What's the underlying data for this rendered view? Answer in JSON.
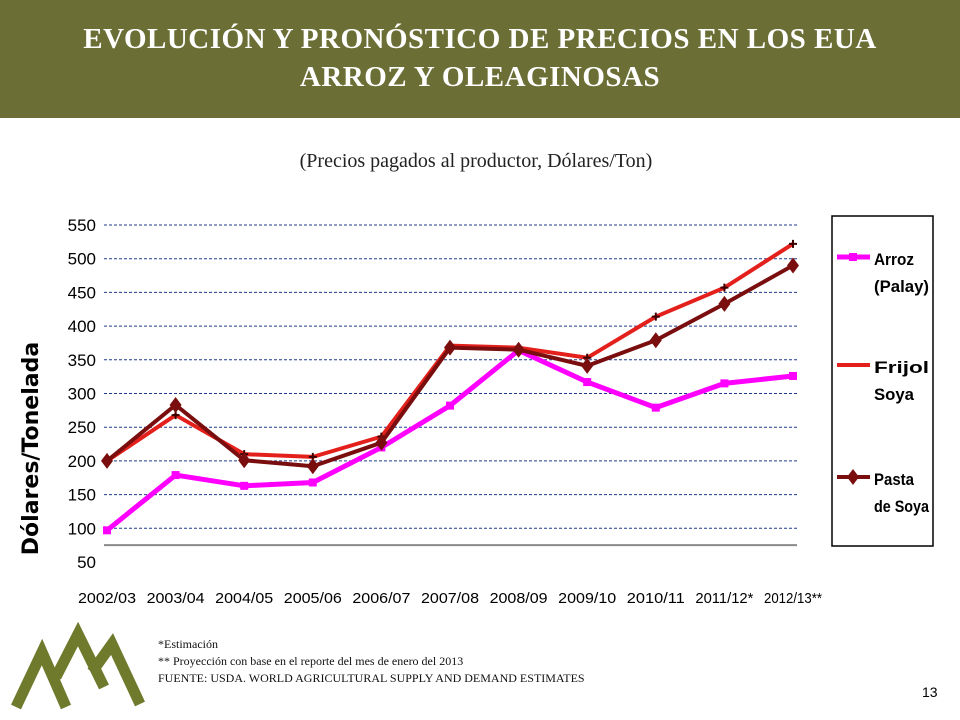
{
  "header": {
    "title_line1": "EVOLUCIÓN Y PRONÓSTICO DE PRECIOS EN LOS EUA",
    "title_line2": "ARROZ Y OLEAGINOSAS",
    "subtitle": "(Precios pagados al productor, Dólares/Ton)"
  },
  "chart_data": {
    "type": "line",
    "ylabel": "Dólares/Tonelada",
    "xlabel": "",
    "ylim": [
      50,
      550
    ],
    "yticks": [
      50,
      100,
      150,
      200,
      250,
      300,
      350,
      400,
      450,
      500,
      550
    ],
    "grid": "horizontal dashed",
    "legend_position": "right",
    "categories": [
      "2002/03",
      "2003/04",
      "2004/05",
      "2005/06",
      "2006/07",
      "2007/08",
      "2008/09",
      "2009/10",
      "2010/11",
      "2011/12*",
      "2012/13**"
    ],
    "series": [
      {
        "name": "Arroz (Palay)",
        "name_lines": [
          "Arroz",
          "(Palay)"
        ],
        "color": "#ff00ff",
        "marker": "square",
        "values": [
          97,
          179,
          163,
          168,
          220,
          282,
          364,
          317,
          279,
          315,
          326
        ]
      },
      {
        "name": "Frijol Soya",
        "name_lines": [
          "Frijol",
          "Soya"
        ],
        "color": "#e3201b",
        "marker": "star",
        "values": [
          200,
          268,
          210,
          206,
          236,
          371,
          368,
          353,
          414,
          457,
          522
        ]
      },
      {
        "name": "Pasta de Soya",
        "name_lines": [
          "Pasta",
          "de Soya"
        ],
        "color": "#7a0e0e",
        "marker": "diamond",
        "values": [
          200,
          283,
          201,
          192,
          227,
          368,
          365,
          341,
          379,
          433,
          490
        ]
      }
    ]
  },
  "notes": {
    "line1": "*Estimación",
    "line2": "** Proyección con base en el reporte  del mes de enero del 2013",
    "line3": "FUENTE: USDA. WORLD AGRICULTURAL SUPPLY AND DEMAND ESTIMATES"
  },
  "page_number": "13",
  "colors": {
    "header_bg": "#6b6f35",
    "logo_green": "#6f7a2c",
    "grid": "#1f3a8a"
  }
}
